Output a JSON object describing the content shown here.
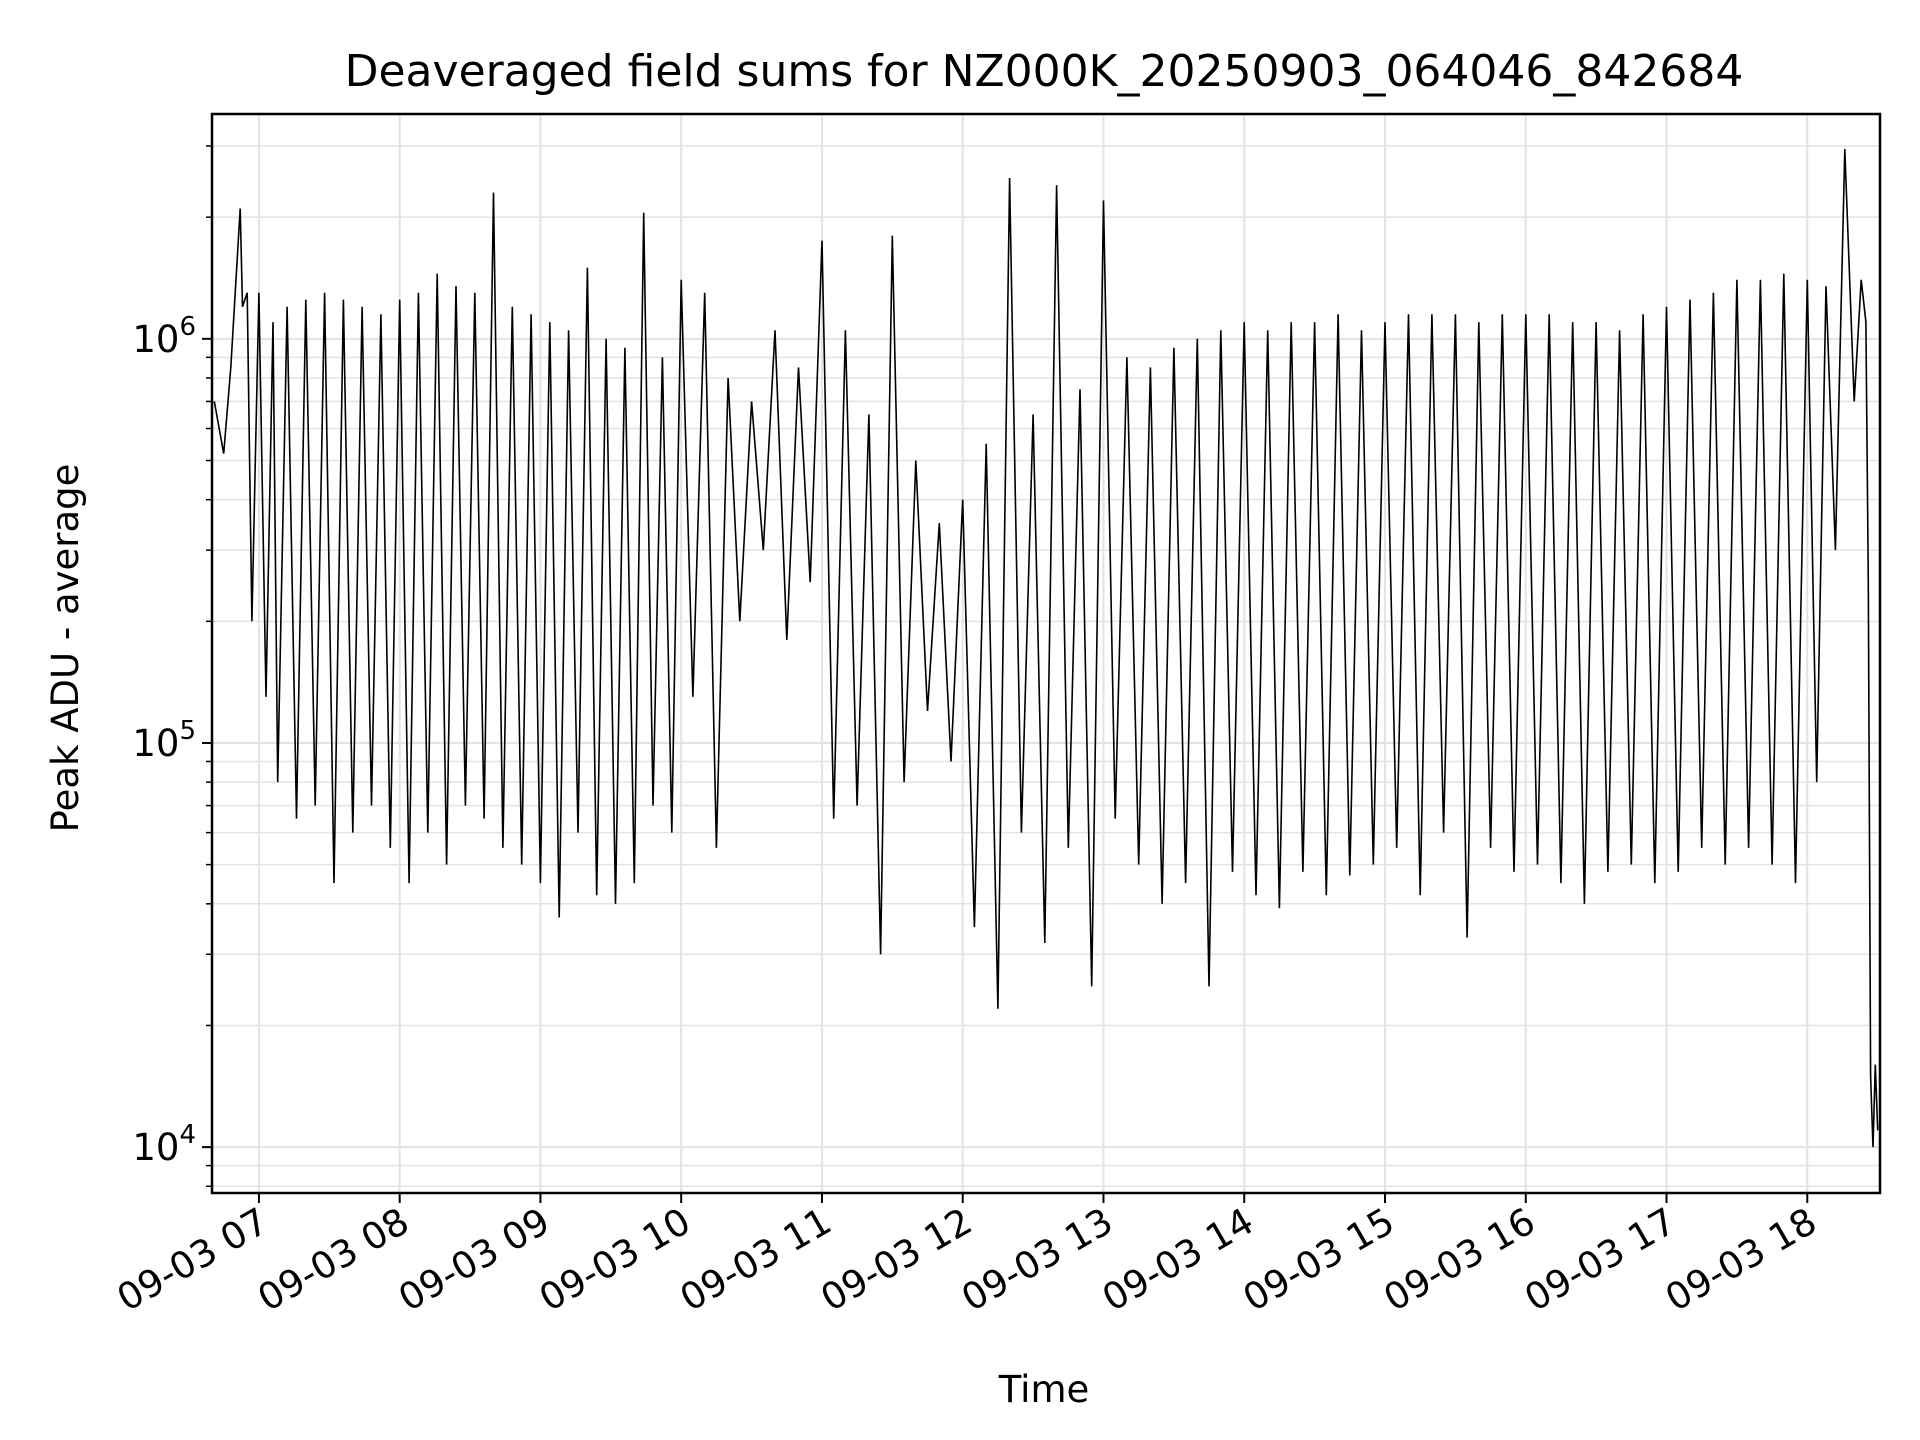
{
  "chart_data": {
    "type": "line",
    "title": "Deaveraged field sums for NZ000K_20250903_064046_842684",
    "xlabel": "Time",
    "ylabel": "Peak ADU - average",
    "y_scale": "log",
    "xlim": [
      "2025-09-03 06:40",
      "2025-09-03 18:31"
    ],
    "ylim": [
      7700,
      3600000
    ],
    "grid": true,
    "line_color": "#000000",
    "grid_color": "#e3e3e3",
    "x_ticks": [
      {
        "value": "2025-09-03 07:00",
        "label": "09-03 07"
      },
      {
        "value": "2025-09-03 08:00",
        "label": "09-03 08"
      },
      {
        "value": "2025-09-03 09:00",
        "label": "09-03 09"
      },
      {
        "value": "2025-09-03 10:00",
        "label": "09-03 10"
      },
      {
        "value": "2025-09-03 11:00",
        "label": "09-03 11"
      },
      {
        "value": "2025-09-03 12:00",
        "label": "09-03 12"
      },
      {
        "value": "2025-09-03 13:00",
        "label": "09-03 13"
      },
      {
        "value": "2025-09-03 14:00",
        "label": "09-03 14"
      },
      {
        "value": "2025-09-03 15:00",
        "label": "09-03 15"
      },
      {
        "value": "2025-09-03 16:00",
        "label": "09-03 16"
      },
      {
        "value": "2025-09-03 17:00",
        "label": "09-03 17"
      },
      {
        "value": "2025-09-03 18:00",
        "label": "09-03 18"
      }
    ],
    "y_ticks": [
      {
        "value": 10000,
        "base": "10",
        "exp": "4"
      },
      {
        "value": 100000,
        "base": "10",
        "exp": "5"
      },
      {
        "value": 1000000,
        "base": "10",
        "exp": "6"
      }
    ],
    "series": [
      {
        "x": [
          "2025-09-03 06:41",
          "2025-09-03 06:45",
          "2025-09-03 06:48",
          "2025-09-03 06:52",
          "2025-09-03 06:53",
          "2025-09-03 06:55",
          "2025-09-03 06:57",
          "2025-09-03 07:00",
          "2025-09-03 07:03",
          "2025-09-03 07:06",
          "2025-09-03 07:08",
          "2025-09-03 07:12",
          "2025-09-03 07:16",
          "2025-09-03 07:20",
          "2025-09-03 07:24",
          "2025-09-03 07:28",
          "2025-09-03 07:32",
          "2025-09-03 07:36",
          "2025-09-03 07:40",
          "2025-09-03 07:44",
          "2025-09-03 07:48",
          "2025-09-03 07:52",
          "2025-09-03 07:56",
          "2025-09-03 08:00",
          "2025-09-03 08:04",
          "2025-09-03 08:08",
          "2025-09-03 08:12",
          "2025-09-03 08:16",
          "2025-09-03 08:20",
          "2025-09-03 08:24",
          "2025-09-03 08:28",
          "2025-09-03 08:32",
          "2025-09-03 08:36",
          "2025-09-03 08:40",
          "2025-09-03 08:44",
          "2025-09-03 08:48",
          "2025-09-03 08:52",
          "2025-09-03 08:56",
          "2025-09-03 09:00",
          "2025-09-03 09:04",
          "2025-09-03 09:08",
          "2025-09-03 09:12",
          "2025-09-03 09:16",
          "2025-09-03 09:20",
          "2025-09-03 09:24",
          "2025-09-03 09:28",
          "2025-09-03 09:32",
          "2025-09-03 09:36",
          "2025-09-03 09:40",
          "2025-09-03 09:44",
          "2025-09-03 09:48",
          "2025-09-03 09:52",
          "2025-09-03 09:56",
          "2025-09-03 10:00",
          "2025-09-03 10:05",
          "2025-09-03 10:10",
          "2025-09-03 10:15",
          "2025-09-03 10:20",
          "2025-09-03 10:25",
          "2025-09-03 10:30",
          "2025-09-03 10:35",
          "2025-09-03 10:40",
          "2025-09-03 10:45",
          "2025-09-03 10:50",
          "2025-09-03 10:55",
          "2025-09-03 11:00",
          "2025-09-03 11:05",
          "2025-09-03 11:10",
          "2025-09-03 11:15",
          "2025-09-03 11:20",
          "2025-09-03 11:25",
          "2025-09-03 11:30",
          "2025-09-03 11:35",
          "2025-09-03 11:40",
          "2025-09-03 11:45",
          "2025-09-03 11:50",
          "2025-09-03 11:55",
          "2025-09-03 12:00",
          "2025-09-03 12:05",
          "2025-09-03 12:10",
          "2025-09-03 12:15",
          "2025-09-03 12:20",
          "2025-09-03 12:25",
          "2025-09-03 12:30",
          "2025-09-03 12:35",
          "2025-09-03 12:40",
          "2025-09-03 12:45",
          "2025-09-03 12:50",
          "2025-09-03 12:55",
          "2025-09-03 13:00",
          "2025-09-03 13:05",
          "2025-09-03 13:10",
          "2025-09-03 13:15",
          "2025-09-03 13:20",
          "2025-09-03 13:25",
          "2025-09-03 13:30",
          "2025-09-03 13:35",
          "2025-09-03 13:40",
          "2025-09-03 13:45",
          "2025-09-03 13:50",
          "2025-09-03 13:55",
          "2025-09-03 14:00",
          "2025-09-03 14:05",
          "2025-09-03 14:10",
          "2025-09-03 14:15",
          "2025-09-03 14:20",
          "2025-09-03 14:25",
          "2025-09-03 14:30",
          "2025-09-03 14:35",
          "2025-09-03 14:40",
          "2025-09-03 14:45",
          "2025-09-03 14:50",
          "2025-09-03 14:55",
          "2025-09-03 15:00",
          "2025-09-03 15:05",
          "2025-09-03 15:10",
          "2025-09-03 15:15",
          "2025-09-03 15:20",
          "2025-09-03 15:25",
          "2025-09-03 15:30",
          "2025-09-03 15:35",
          "2025-09-03 15:40",
          "2025-09-03 15:45",
          "2025-09-03 15:50",
          "2025-09-03 15:55",
          "2025-09-03 16:00",
          "2025-09-03 16:05",
          "2025-09-03 16:10",
          "2025-09-03 16:15",
          "2025-09-03 16:20",
          "2025-09-03 16:25",
          "2025-09-03 16:30",
          "2025-09-03 16:35",
          "2025-09-03 16:40",
          "2025-09-03 16:45",
          "2025-09-03 16:50",
          "2025-09-03 16:55",
          "2025-09-03 17:00",
          "2025-09-03 17:05",
          "2025-09-03 17:10",
          "2025-09-03 17:15",
          "2025-09-03 17:20",
          "2025-09-03 17:25",
          "2025-09-03 17:30",
          "2025-09-03 17:35",
          "2025-09-03 17:40",
          "2025-09-03 17:45",
          "2025-09-03 17:50",
          "2025-09-03 17:55",
          "2025-09-03 18:00",
          "2025-09-03 18:04",
          "2025-09-03 18:08",
          "2025-09-03 18:12",
          "2025-09-03 18:16",
          "2025-09-03 18:20",
          "2025-09-03 18:23",
          "2025-09-03 18:25",
          "2025-09-03 18:26",
          "2025-09-03 18:27",
          "2025-09-03 18:28",
          "2025-09-03 18:29",
          "2025-09-03 18:30"
        ],
        "y": [
          700000,
          520000,
          850000,
          2100000,
          1200000,
          1300000,
          200000,
          1300000,
          130000,
          1100000,
          80000,
          1200000,
          65000,
          1250000,
          70000,
          1300000,
          45000,
          1250000,
          60000,
          1200000,
          70000,
          1150000,
          55000,
          1250000,
          45000,
          1300000,
          60000,
          1450000,
          50000,
          1350000,
          70000,
          1300000,
          65000,
          2300000,
          55000,
          1200000,
          50000,
          1150000,
          45000,
          1100000,
          37000,
          1050000,
          60000,
          1500000,
          42000,
          1000000,
          40000,
          950000,
          45000,
          2050000,
          70000,
          900000,
          60000,
          1400000,
          130000,
          1300000,
          55000,
          800000,
          200000,
          700000,
          300000,
          1050000,
          180000,
          850000,
          250000,
          1750000,
          65000,
          1050000,
          70000,
          650000,
          30000,
          1800000,
          80000,
          500000,
          120000,
          350000,
          90000,
          400000,
          35000,
          550000,
          22000,
          2500000,
          60000,
          650000,
          32000,
          2400000,
          55000,
          750000,
          25000,
          2200000,
          65000,
          900000,
          50000,
          850000,
          40000,
          950000,
          45000,
          1000000,
          25000,
          1050000,
          48000,
          1100000,
          42000,
          1050000,
          39000,
          1100000,
          48000,
          1100000,
          42000,
          1150000,
          47000,
          1050000,
          50000,
          1100000,
          55000,
          1150000,
          42000,
          1150000,
          60000,
          1150000,
          33000,
          1100000,
          55000,
          1150000,
          48000,
          1150000,
          50000,
          1150000,
          45000,
          1100000,
          40000,
          1100000,
          48000,
          1050000,
          50000,
          1150000,
          45000,
          1200000,
          48000,
          1250000,
          55000,
          1300000,
          50000,
          1400000,
          55000,
          1400000,
          50000,
          1450000,
          45000,
          1400000,
          80000,
          1350000,
          300000,
          2950000,
          700000,
          1400000,
          1100000,
          250000,
          15000,
          10000,
          16000,
          11000
        ]
      }
    ]
  }
}
